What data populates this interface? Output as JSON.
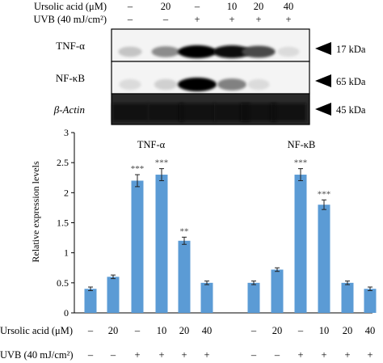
{
  "blot": {
    "header_rows": [
      {
        "label": "Ursolic acid (μM)",
        "values": [
          "–",
          "20",
          "–",
          "10",
          "20",
          "40"
        ]
      },
      {
        "label": "UVB (40 mJ/cm²)",
        "values": [
          "–",
          "–",
          "+",
          "+",
          "+",
          "+"
        ]
      }
    ],
    "rows": [
      {
        "label": "TNF-α",
        "marker": "17 kDa",
        "intensity": [
          0.15,
          0.4,
          1.0,
          0.95,
          0.7,
          0.05
        ]
      },
      {
        "label": "NF-κB",
        "marker": "65 kDa",
        "intensity": [
          0.05,
          0.1,
          1.0,
          0.45,
          0.05,
          0.0
        ]
      },
      {
        "label": "β-Actin",
        "marker": "45 kDa",
        "intensity": [
          0.9,
          0.9,
          0.9,
          0.9,
          0.9,
          0.9
        ]
      }
    ]
  },
  "chart_data": {
    "type": "bar",
    "ylabel": "Relative expression levels",
    "ylim": [
      0,
      3
    ],
    "yticks": [
      "0",
      "0.5",
      "1",
      "1.5",
      "2",
      "2.5",
      "3"
    ],
    "bar_color": "#5b9bd5",
    "groups": [
      {
        "name": "TNF-α",
        "values": [
          0.4,
          0.6,
          2.2,
          2.3,
          1.2,
          0.5
        ],
        "errors": [
          0.03,
          0.03,
          0.1,
          0.1,
          0.06,
          0.03
        ],
        "stars": [
          "",
          "",
          "***",
          "***",
          "**",
          ""
        ]
      },
      {
        "name": "NF-κB",
        "values": [
          0.5,
          0.72,
          2.3,
          1.8,
          0.5,
          0.4
        ],
        "errors": [
          0.03,
          0.03,
          0.1,
          0.08,
          0.03,
          0.03
        ],
        "stars": [
          "",
          "",
          "***",
          "***",
          "",
          ""
        ]
      }
    ],
    "condition_rows": [
      {
        "label": "Ursolic acid (μM)",
        "values": [
          "–",
          "20",
          "–",
          "10",
          "20",
          "40",
          "–",
          "20",
          "–",
          "10",
          "20",
          "40"
        ]
      },
      {
        "label": "UVB (40 mJ/cm²)",
        "values": [
          "–",
          "–",
          "+",
          "+",
          "+",
          "+",
          "–",
          "–",
          "+",
          "+",
          "+",
          "+"
        ]
      }
    ]
  }
}
